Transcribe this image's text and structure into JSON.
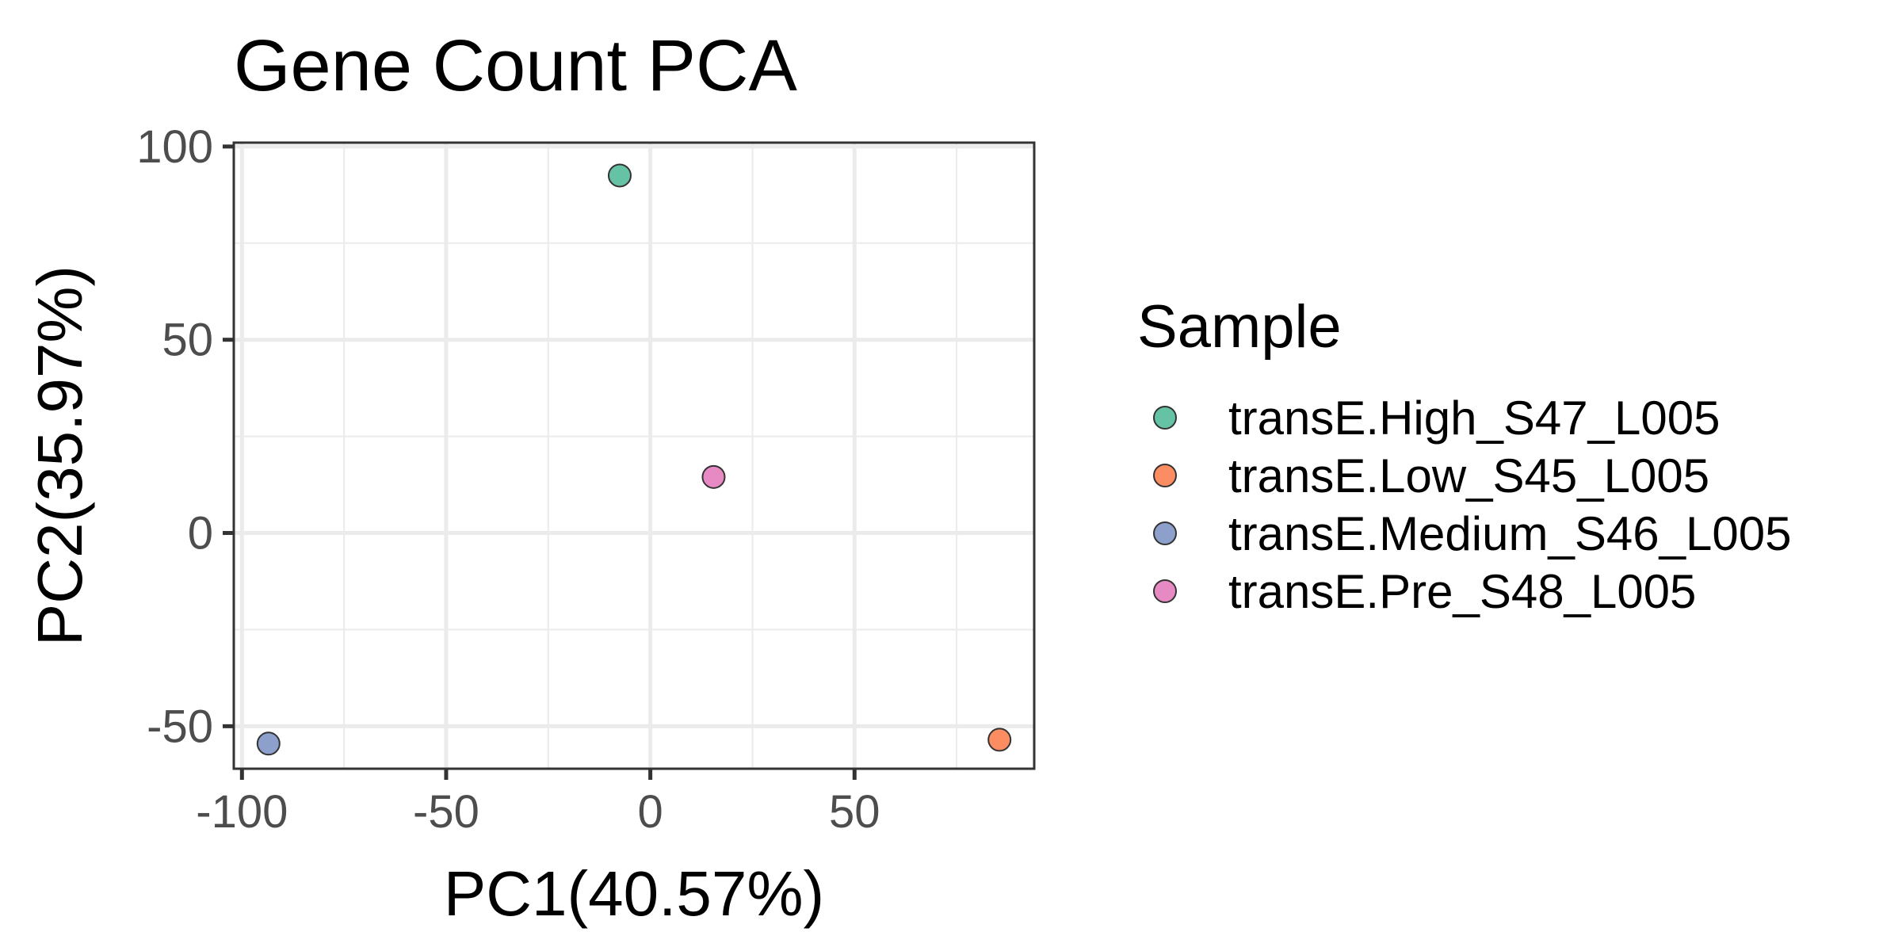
{
  "chart_data": {
    "type": "scatter",
    "title": "Gene Count PCA",
    "xlabel": "PC1(40.57%)",
    "ylabel": "PC2(35.97%)",
    "xlim": [
      -102,
      94
    ],
    "ylim": [
      -61,
      101
    ],
    "x_ticks": [
      -100,
      -50,
      0,
      50
    ],
    "x_tick_labels": [
      "-100",
      "-50",
      "0",
      "50"
    ],
    "y_ticks": [
      -50,
      0,
      50,
      100
    ],
    "y_tick_labels": [
      "-50",
      "0",
      "50",
      "100"
    ],
    "grid": true,
    "legend": {
      "title": "Sample",
      "placement": "right"
    },
    "series": [
      {
        "name": "transE.High_S47_L005",
        "color": "#66C2A5",
        "x": [
          -7.5
        ],
        "y": [
          92.5
        ]
      },
      {
        "name": "transE.Low_S45_L005",
        "color": "#FC8D62",
        "x": [
          85.5
        ],
        "y": [
          -53.5
        ]
      },
      {
        "name": "transE.Medium_S46_L005",
        "color": "#8DA0CB",
        "x": [
          -93.5
        ],
        "y": [
          -54.5
        ]
      },
      {
        "name": "transE.Pre_S48_L005",
        "color": "#E78AC3",
        "x": [
          15.5
        ],
        "y": [
          14.5
        ]
      }
    ]
  }
}
